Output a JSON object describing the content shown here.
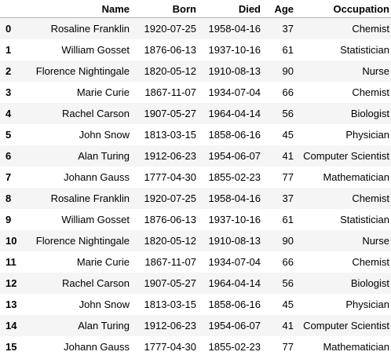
{
  "table": {
    "headers": {
      "index": "",
      "name": "Name",
      "born": "Born",
      "died": "Died",
      "age": "Age",
      "occupation": "Occupation"
    },
    "rows": [
      {
        "index": "0",
        "name": "Rosaline Franklin",
        "born": "1920-07-25",
        "died": "1958-04-16",
        "age": "37",
        "occupation": "Chemist"
      },
      {
        "index": "1",
        "name": "William Gosset",
        "born": "1876-06-13",
        "died": "1937-10-16",
        "age": "61",
        "occupation": "Statistician"
      },
      {
        "index": "2",
        "name": "Florence Nightingale",
        "born": "1820-05-12",
        "died": "1910-08-13",
        "age": "90",
        "occupation": "Nurse"
      },
      {
        "index": "3",
        "name": "Marie Curie",
        "born": "1867-11-07",
        "died": "1934-07-04",
        "age": "66",
        "occupation": "Chemist"
      },
      {
        "index": "4",
        "name": "Rachel Carson",
        "born": "1907-05-27",
        "died": "1964-04-14",
        "age": "56",
        "occupation": "Biologist"
      },
      {
        "index": "5",
        "name": "John Snow",
        "born": "1813-03-15",
        "died": "1858-06-16",
        "age": "45",
        "occupation": "Physician"
      },
      {
        "index": "6",
        "name": "Alan Turing",
        "born": "1912-06-23",
        "died": "1954-06-07",
        "age": "41",
        "occupation": "Computer Scientist"
      },
      {
        "index": "7",
        "name": "Johann Gauss",
        "born": "1777-04-30",
        "died": "1855-02-23",
        "age": "77",
        "occupation": "Mathematician"
      },
      {
        "index": "8",
        "name": "Rosaline Franklin",
        "born": "1920-07-25",
        "died": "1958-04-16",
        "age": "37",
        "occupation": "Chemist"
      },
      {
        "index": "9",
        "name": "William Gosset",
        "born": "1876-06-13",
        "died": "1937-10-16",
        "age": "61",
        "occupation": "Statistician"
      },
      {
        "index": "10",
        "name": "Florence Nightingale",
        "born": "1820-05-12",
        "died": "1910-08-13",
        "age": "90",
        "occupation": "Nurse"
      },
      {
        "index": "11",
        "name": "Marie Curie",
        "born": "1867-11-07",
        "died": "1934-07-04",
        "age": "66",
        "occupation": "Chemist"
      },
      {
        "index": "12",
        "name": "Rachel Carson",
        "born": "1907-05-27",
        "died": "1964-04-14",
        "age": "56",
        "occupation": "Biologist"
      },
      {
        "index": "13",
        "name": "John Snow",
        "born": "1813-03-15",
        "died": "1858-06-16",
        "age": "45",
        "occupation": "Physician"
      },
      {
        "index": "14",
        "name": "Alan Turing",
        "born": "1912-06-23",
        "died": "1954-06-07",
        "age": "41",
        "occupation": "Computer Scientist"
      },
      {
        "index": "15",
        "name": "Johann Gauss",
        "born": "1777-04-30",
        "died": "1855-02-23",
        "age": "77",
        "occupation": "Mathematician"
      }
    ]
  },
  "colors": {
    "stripe": "#f5f5f5",
    "background": "#ffffff",
    "header_rule": "#b0b0b0",
    "text": "#000000"
  }
}
